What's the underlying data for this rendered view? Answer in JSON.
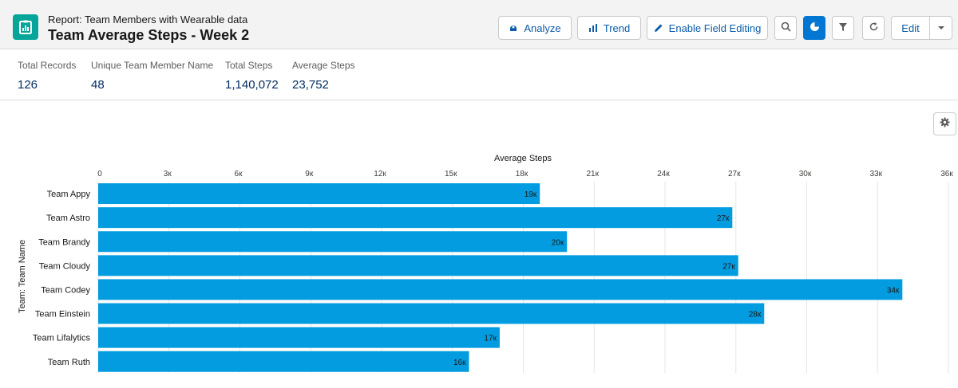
{
  "header": {
    "report_type": "Report: Team Members with Wearable data",
    "title": "Team Average Steps - Week 2",
    "icon": "report-icon"
  },
  "toolbar": {
    "analyze_label": "Analyze",
    "trend_label": "Trend",
    "enable_field_editing_label": "Enable Field Editing",
    "edit_label": "Edit",
    "icons": [
      "search-icon",
      "chart-icon",
      "filter-icon",
      "refresh-icon",
      "chevron-down-icon"
    ],
    "accent_color": "#0176d3"
  },
  "summary": [
    {
      "label": "Total Records",
      "value": "126"
    },
    {
      "label": "Unique Team Member Name",
      "value": "48"
    },
    {
      "label": "Total Steps",
      "value": "1,140,072"
    },
    {
      "label": "Average Steps",
      "value": "23,752"
    }
  ],
  "chart_data": {
    "type": "bar",
    "orientation": "horizontal",
    "title": "",
    "xlabel": "Average Steps",
    "ylabel": "Team: Team Name",
    "xlim": [
      0,
      36000
    ],
    "ticks": [
      0,
      3000,
      6000,
      9000,
      12000,
      15000,
      18000,
      21000,
      24000,
      27000,
      30000,
      33000,
      36000
    ],
    "tick_labels": [
      "0",
      "3к",
      "6к",
      "9к",
      "12к",
      "15к",
      "18к",
      "21к",
      "24к",
      "27к",
      "30к",
      "33к",
      "36к"
    ],
    "categories": [
      "Team Appy",
      "Team Astro",
      "Team Brandy",
      "Team Cloudy",
      "Team Codey",
      "Team Einstein",
      "Team Lifalytics",
      "Team Ruth"
    ],
    "values": [
      18700,
      26850,
      19850,
      27100,
      34050,
      28200,
      17000,
      15700
    ],
    "data_labels": [
      "19к",
      "27к",
      "20к",
      "27к",
      "34к",
      "28к",
      "17к",
      "16к"
    ],
    "bar_color": "#039ce0",
    "grid": true,
    "legend": "none"
  }
}
